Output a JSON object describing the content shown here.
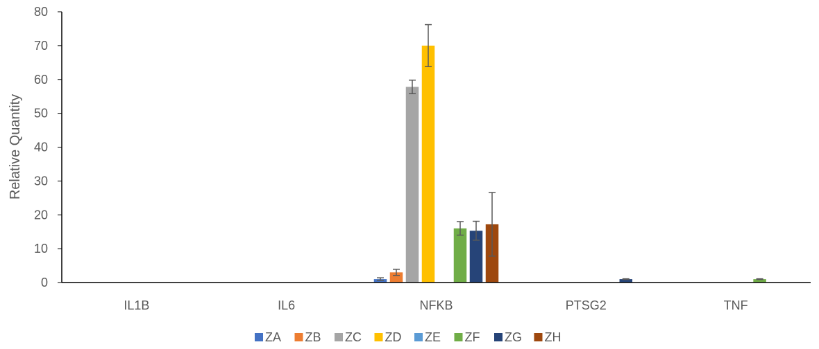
{
  "chart_data": {
    "type": "bar",
    "title": "",
    "xlabel": "",
    "ylabel": "Relative Quantity",
    "ylim": [
      0,
      80
    ],
    "yticks": [
      0,
      10,
      20,
      30,
      40,
      50,
      60,
      70,
      80
    ],
    "grid": false,
    "legend_position": "bottom",
    "categories": [
      "IL1B",
      "IL6",
      "NFKB",
      "PTSG2",
      "TNF"
    ],
    "series": [
      {
        "name": "ZA",
        "color": "#4472C4",
        "values": [
          0,
          0,
          1.0,
          0,
          0
        ],
        "errors": [
          0,
          0,
          0.4,
          0,
          0
        ]
      },
      {
        "name": "ZB",
        "color": "#ED7D31",
        "values": [
          0,
          0,
          3.0,
          0,
          0
        ],
        "errors": [
          0,
          0,
          0.9,
          0,
          0
        ]
      },
      {
        "name": "ZC",
        "color": "#A5A5A5",
        "values": [
          0,
          0,
          57.8,
          0,
          0
        ],
        "errors": [
          0,
          0,
          2.0,
          0,
          0
        ]
      },
      {
        "name": "ZD",
        "color": "#FFC000",
        "values": [
          0,
          0,
          70.0,
          0,
          0
        ],
        "errors": [
          0,
          0,
          6.2,
          0,
          0
        ]
      },
      {
        "name": "ZE",
        "color": "#5B9BD5",
        "values": [
          0,
          0,
          0,
          0,
          0
        ],
        "errors": [
          0,
          0,
          0,
          0,
          0
        ]
      },
      {
        "name": "ZF",
        "color": "#70AD47",
        "values": [
          0,
          0,
          16.0,
          0,
          1.0
        ],
        "errors": [
          0,
          0,
          2.0,
          0,
          0.1
        ]
      },
      {
        "name": "ZG",
        "color": "#264478",
        "values": [
          0,
          0,
          15.3,
          1.0,
          0
        ],
        "errors": [
          0,
          0,
          2.8,
          0.1,
          0
        ]
      },
      {
        "name": "ZH",
        "color": "#9E480E",
        "values": [
          0,
          0,
          17.2,
          0,
          0
        ],
        "errors": [
          0,
          0,
          9.4,
          0,
          0
        ]
      }
    ]
  }
}
